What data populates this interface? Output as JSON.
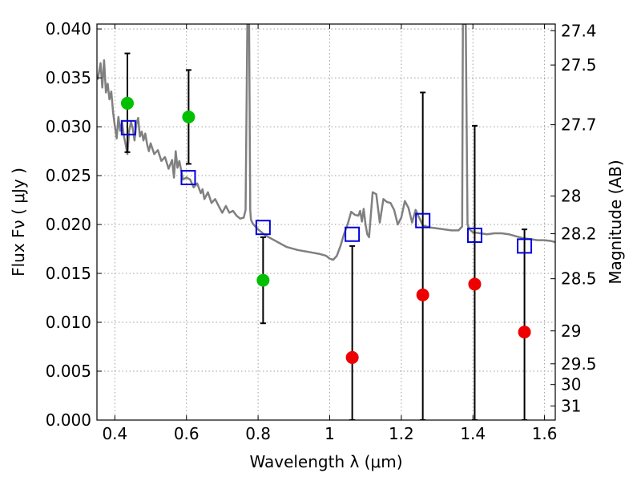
{
  "chart_data": {
    "type": "scatter",
    "title": "",
    "xlabel": "Wavelength  λ (μm)",
    "ylabel": "Flux  Fν  ( μJy )",
    "y2label": "Magnitude (AB)",
    "xlim": [
      0.35,
      1.63
    ],
    "ylim": [
      0.0,
      0.0405
    ],
    "grid": true,
    "x_ticks": [
      {
        "v": 0.4,
        "label": "0.4"
      },
      {
        "v": 0.6,
        "label": "0.6"
      },
      {
        "v": 0.8,
        "label": "0.8"
      },
      {
        "v": 1.0,
        "label": "1"
      },
      {
        "v": 1.2,
        "label": "1.2"
      },
      {
        "v": 1.4,
        "label": "1.4"
      },
      {
        "v": 1.6,
        "label": "1.6"
      }
    ],
    "y_ticks": [
      {
        "v": 0.0,
        "label": "0.000"
      },
      {
        "v": 0.005,
        "label": "0.005"
      },
      {
        "v": 0.01,
        "label": "0.010"
      },
      {
        "v": 0.015,
        "label": "0.015"
      },
      {
        "v": 0.02,
        "label": "0.020"
      },
      {
        "v": 0.025,
        "label": "0.025"
      },
      {
        "v": 0.03,
        "label": "0.030"
      },
      {
        "v": 0.035,
        "label": "0.035"
      },
      {
        "v": 0.04,
        "label": "0.040"
      }
    ],
    "y2_ticks": [
      {
        "mag": 27.4,
        "label": "27.4"
      },
      {
        "mag": 27.5,
        "label": "27.5"
      },
      {
        "mag": 27.7,
        "label": "27.7"
      },
      {
        "mag": 28,
        "label": "28"
      },
      {
        "mag": 28.2,
        "label": "28.2"
      },
      {
        "mag": 28.5,
        "label": "28.5"
      },
      {
        "mag": 29,
        "label": "29"
      },
      {
        "mag": 29.5,
        "label": "29.5"
      },
      {
        "mag": 30,
        "label": "30"
      },
      {
        "mag": 31,
        "label": "31"
      }
    ],
    "colors": {
      "model": "#808080",
      "green": "#00c000",
      "red": "#ee0000",
      "square": "#0000dd",
      "errorbar": "#000000",
      "grid": "#a0a0a0"
    },
    "series": [
      {
        "kind": "model_sed_line",
        "x": [
          0.352,
          0.36,
          0.365,
          0.37,
          0.375,
          0.38,
          0.385,
          0.39,
          0.395,
          0.4,
          0.405,
          0.41,
          0.415,
          0.42,
          0.425,
          0.43,
          0.435,
          0.44,
          0.445,
          0.45,
          0.455,
          0.46,
          0.465,
          0.47,
          0.475,
          0.48,
          0.485,
          0.49,
          0.495,
          0.5,
          0.51,
          0.52,
          0.53,
          0.54,
          0.55,
          0.56,
          0.565,
          0.57,
          0.575,
          0.58,
          0.585,
          0.59,
          0.6,
          0.61,
          0.62,
          0.63,
          0.64,
          0.645,
          0.65,
          0.66,
          0.67,
          0.68,
          0.69,
          0.7,
          0.71,
          0.72,
          0.73,
          0.74,
          0.75,
          0.76,
          0.765,
          0.77,
          0.772,
          0.775,
          0.778,
          0.78,
          0.785,
          0.79,
          0.8,
          0.82,
          0.85,
          0.88,
          0.91,
          0.94,
          0.97,
          0.99,
          1.0,
          1.01,
          1.02,
          1.03,
          1.04,
          1.05,
          1.06,
          1.07,
          1.08,
          1.085,
          1.09,
          1.095,
          1.1,
          1.105,
          1.11,
          1.12,
          1.13,
          1.14,
          1.15,
          1.16,
          1.17,
          1.18,
          1.19,
          1.2,
          1.21,
          1.22,
          1.23,
          1.24,
          1.26,
          1.28,
          1.3,
          1.32,
          1.34,
          1.36,
          1.37,
          1.372,
          1.375,
          1.38,
          1.385,
          1.39,
          1.4,
          1.42,
          1.44,
          1.46,
          1.48,
          1.5,
          1.52,
          1.54,
          1.56,
          1.58,
          1.6,
          1.62,
          1.63
        ],
        "y": [
          0.0348,
          0.0365,
          0.034,
          0.0368,
          0.0335,
          0.0344,
          0.0328,
          0.0336,
          0.0315,
          0.0301,
          0.0288,
          0.031,
          0.0296,
          0.0305,
          0.0291,
          0.0282,
          0.0272,
          0.0296,
          0.0305,
          0.0298,
          0.0286,
          0.0303,
          0.0309,
          0.029,
          0.0295,
          0.0286,
          0.0293,
          0.0282,
          0.0275,
          0.0283,
          0.0272,
          0.0276,
          0.0265,
          0.0269,
          0.0257,
          0.0266,
          0.0248,
          0.0275,
          0.0258,
          0.0265,
          0.0256,
          0.0246,
          0.0248,
          0.0246,
          0.0238,
          0.0242,
          0.0232,
          0.0236,
          0.0226,
          0.0233,
          0.0222,
          0.0226,
          0.0219,
          0.0212,
          0.0219,
          0.0212,
          0.0214,
          0.0209,
          0.0206,
          0.0207,
          0.0215,
          0.0405,
          0.0405,
          0.0405,
          0.0215,
          0.0205,
          0.0201,
          0.0199,
          0.0195,
          0.0189,
          0.0183,
          0.0177,
          0.0174,
          0.0172,
          0.017,
          0.0168,
          0.0165,
          0.0164,
          0.0168,
          0.0178,
          0.019,
          0.02,
          0.0213,
          0.021,
          0.0209,
          0.0214,
          0.0203,
          0.0216,
          0.02,
          0.019,
          0.0187,
          0.0233,
          0.0231,
          0.0202,
          0.0226,
          0.0223,
          0.0222,
          0.0215,
          0.02,
          0.0207,
          0.0224,
          0.0217,
          0.0202,
          0.0215,
          0.0199,
          0.0197,
          0.0196,
          0.0195,
          0.0194,
          0.0194,
          0.0198,
          0.0405,
          0.0405,
          0.0405,
          0.02,
          0.0195,
          0.0192,
          0.0191,
          0.019,
          0.0191,
          0.0191,
          0.019,
          0.0188,
          0.0186,
          0.0185,
          0.0184,
          0.0184,
          0.0183,
          0.0182
        ]
      },
      {
        "kind": "model_squares",
        "x": [
          0.438,
          0.605,
          0.814,
          1.063,
          1.26,
          1.405,
          1.544
        ],
        "y": [
          0.0299,
          0.0248,
          0.0197,
          0.019,
          0.0204,
          0.0189,
          0.0178
        ]
      },
      {
        "kind": "observed_green",
        "x": [
          0.435,
          0.606,
          0.814
        ],
        "y": [
          0.0324,
          0.031,
          0.0143
        ],
        "err_low": [
          0.0274,
          0.0262,
          0.0099
        ],
        "err_high": [
          0.0375,
          0.0358,
          0.0187
        ]
      },
      {
        "kind": "observed_red",
        "x": [
          1.063,
          1.26,
          1.405,
          1.544
        ],
        "y": [
          0.0064,
          0.0128,
          0.0139,
          0.009
        ],
        "err_low": [
          0.0,
          0.0,
          0.0,
          0.0
        ],
        "err_high": [
          0.0178,
          0.0335,
          0.0301,
          0.0195
        ]
      }
    ]
  }
}
